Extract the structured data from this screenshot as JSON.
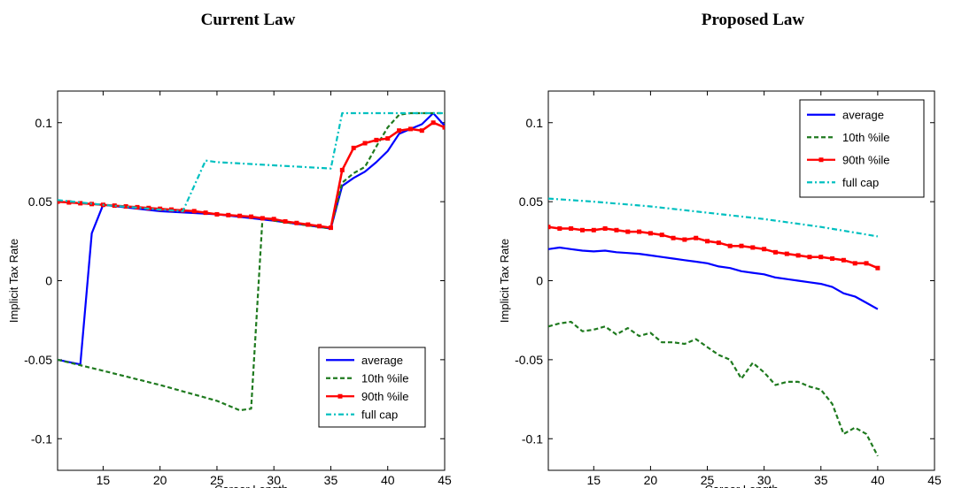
{
  "chart_data": [
    {
      "type": "line",
      "title": "Current Law",
      "xlabel": "Career Length",
      "ylabel": "Implicit Tax Rate",
      "xlim": [
        11,
        45
      ],
      "ylim": [
        -0.12,
        0.12
      ],
      "xticks": [
        "15",
        "20",
        "25",
        "30",
        "35",
        "40",
        "45"
      ],
      "yticks": [
        "0.1",
        "0.05",
        "0",
        "-0.05",
        "-0.1"
      ],
      "grid": false,
      "legend_position": "bottom-right",
      "series": [
        {
          "name": "average",
          "color": "#0000ff",
          "style": "solid",
          "x": [
            11,
            13,
            14,
            15,
            20,
            25,
            30,
            35,
            36,
            37,
            38,
            39,
            40,
            41,
            42,
            43,
            44,
            45
          ],
          "y": [
            -0.05,
            -0.053,
            0.03,
            0.048,
            0.044,
            0.042,
            0.038,
            0.033,
            0.06,
            0.065,
            0.069,
            0.075,
            0.082,
            0.093,
            0.096,
            0.099,
            0.106,
            0.098
          ]
        },
        {
          "name": "10th %ile",
          "color": "#1f7a1f",
          "style": "dashed",
          "x": [
            11,
            15,
            20,
            25,
            27,
            28,
            29,
            30,
            35,
            36,
            37,
            38,
            39,
            40,
            41,
            42,
            45
          ],
          "y": [
            -0.05,
            -0.057,
            -0.066,
            -0.076,
            -0.082,
            -0.081,
            0.04,
            0.038,
            0.033,
            0.062,
            0.068,
            0.072,
            0.085,
            0.097,
            0.105,
            0.106,
            0.106
          ]
        },
        {
          "name": "90th %ile",
          "color": "#ff0000",
          "style": "solid-marker",
          "x": [
            11,
            12,
            13,
            14,
            15,
            16,
            17,
            18,
            19,
            20,
            21,
            22,
            23,
            24,
            25,
            26,
            27,
            28,
            29,
            30,
            31,
            32,
            33,
            34,
            35,
            36,
            37,
            38,
            39,
            40,
            41,
            42,
            43,
            44,
            45
          ],
          "y": [
            0.05,
            0.0495,
            0.049,
            0.0485,
            0.048,
            0.0475,
            0.047,
            0.0465,
            0.046,
            0.0455,
            0.045,
            0.0445,
            0.044,
            0.043,
            0.042,
            0.0415,
            0.041,
            0.0405,
            0.0395,
            0.039,
            0.0375,
            0.0365,
            0.0355,
            0.0345,
            0.0335,
            0.07,
            0.084,
            0.087,
            0.089,
            0.09,
            0.095,
            0.096,
            0.095,
            0.1,
            0.097
          ]
        },
        {
          "name": "full cap",
          "color": "#00c0c0",
          "style": "dashdot",
          "x": [
            11,
            15,
            20,
            22,
            24,
            25,
            30,
            35,
            36,
            45
          ],
          "y": [
            0.051,
            0.048,
            0.045,
            0.044,
            0.076,
            0.075,
            0.073,
            0.071,
            0.106,
            0.106
          ]
        }
      ]
    },
    {
      "type": "line",
      "title": "Proposed Law",
      "xlabel": "Career Length",
      "ylabel": "Implicit Tax Rate",
      "xlim": [
        11,
        45
      ],
      "ylim": [
        -0.12,
        0.12
      ],
      "xticks": [
        "15",
        "20",
        "25",
        "30",
        "35",
        "40",
        "45"
      ],
      "yticks": [
        "0.1",
        "0.05",
        "0",
        "-0.05",
        "-0.1"
      ],
      "grid": false,
      "legend_position": "top-right",
      "series": [
        {
          "name": "average",
          "color": "#0000ff",
          "style": "solid",
          "x": [
            11,
            12,
            13,
            14,
            15,
            16,
            17,
            18,
            19,
            20,
            21,
            22,
            23,
            24,
            25,
            26,
            27,
            28,
            29,
            30,
            31,
            32,
            33,
            34,
            35,
            36,
            37,
            38,
            39,
            40
          ],
          "y": [
            0.02,
            0.021,
            0.02,
            0.019,
            0.0185,
            0.019,
            0.018,
            0.0175,
            0.017,
            0.016,
            0.015,
            0.014,
            0.013,
            0.012,
            0.011,
            0.009,
            0.008,
            0.006,
            0.005,
            0.004,
            0.002,
            0.001,
            0.0,
            -0.001,
            -0.002,
            -0.004,
            -0.008,
            -0.01,
            -0.014,
            -0.018
          ]
        },
        {
          "name": "10th %ile",
          "color": "#1f7a1f",
          "style": "dashed",
          "x": [
            11,
            12,
            13,
            14,
            15,
            16,
            17,
            18,
            19,
            20,
            21,
            22,
            23,
            24,
            25,
            26,
            27,
            28,
            29,
            30,
            31,
            32,
            33,
            34,
            35,
            36,
            37,
            38,
            39,
            40
          ],
          "y": [
            -0.029,
            -0.027,
            -0.026,
            -0.032,
            -0.031,
            -0.029,
            -0.034,
            -0.03,
            -0.035,
            -0.033,
            -0.039,
            -0.039,
            -0.04,
            -0.037,
            -0.042,
            -0.047,
            -0.05,
            -0.062,
            -0.052,
            -0.058,
            -0.066,
            -0.064,
            -0.064,
            -0.067,
            -0.069,
            -0.078,
            -0.097,
            -0.093,
            -0.097,
            -0.111
          ]
        },
        {
          "name": "90th %ile",
          "color": "#ff0000",
          "style": "solid-marker",
          "x": [
            11,
            12,
            13,
            14,
            15,
            16,
            17,
            18,
            19,
            20,
            21,
            22,
            23,
            24,
            25,
            26,
            27,
            28,
            29,
            30,
            31,
            32,
            33,
            34,
            35,
            36,
            37,
            38,
            39,
            40
          ],
          "y": [
            0.034,
            0.033,
            0.033,
            0.032,
            0.032,
            0.033,
            0.032,
            0.031,
            0.031,
            0.03,
            0.029,
            0.027,
            0.026,
            0.027,
            0.025,
            0.024,
            0.022,
            0.022,
            0.021,
            0.02,
            0.018,
            0.017,
            0.016,
            0.015,
            0.015,
            0.014,
            0.013,
            0.011,
            0.011,
            0.008
          ]
        },
        {
          "name": "full cap",
          "color": "#00c0c0",
          "style": "dashdot",
          "x": [
            11,
            15,
            20,
            25,
            30,
            35,
            40
          ],
          "y": [
            0.052,
            0.05,
            0.047,
            0.043,
            0.039,
            0.034,
            0.028
          ]
        }
      ]
    }
  ]
}
